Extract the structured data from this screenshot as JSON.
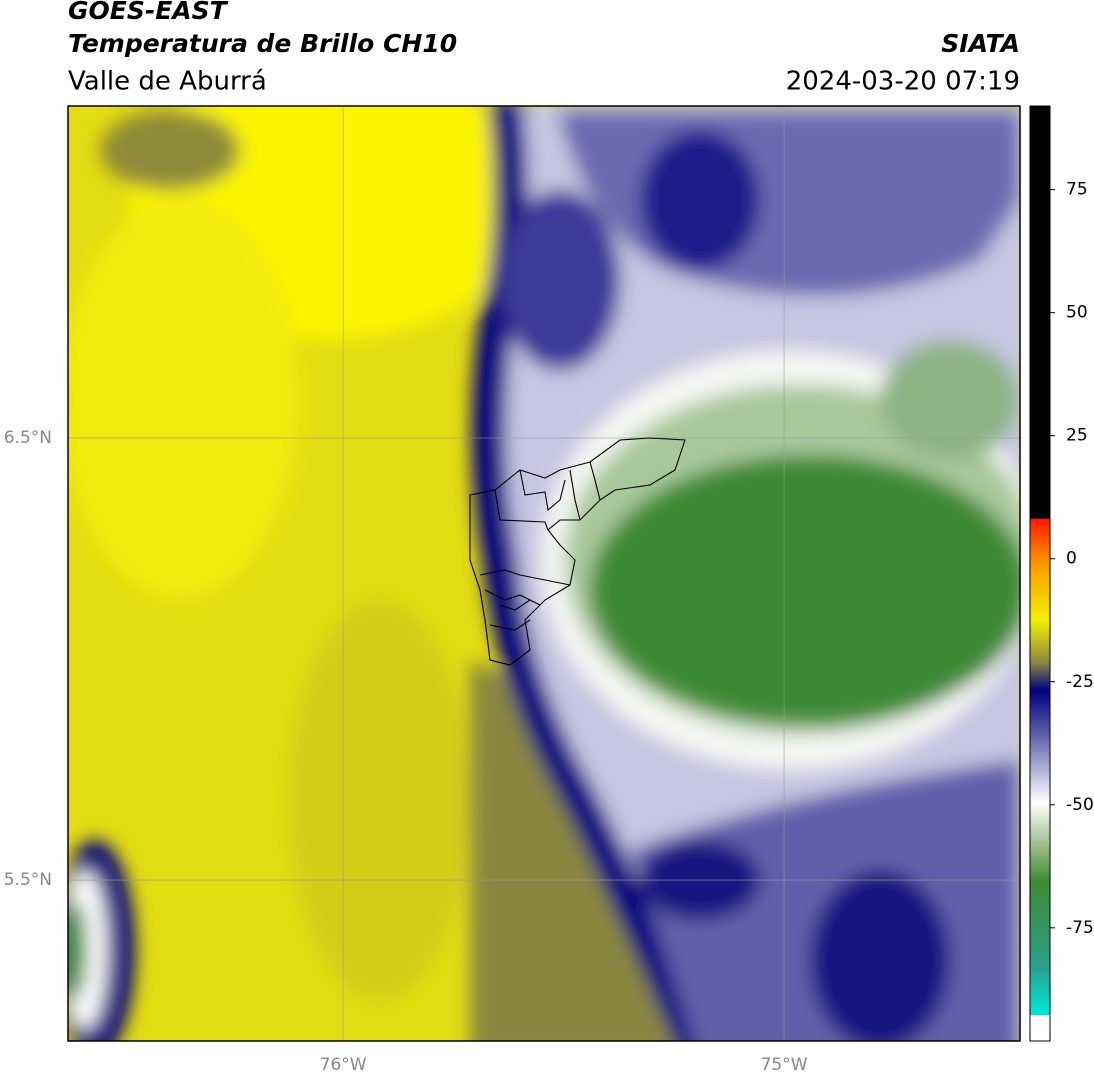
{
  "header": {
    "title": "GOES-EAST",
    "subtitle": "Temperatura de Brillo CH10",
    "region": "Valle de Aburrá",
    "source": "SIATA",
    "timestamp": "2024-03-20 07:19"
  },
  "map": {
    "latlim": [
      5.136,
      7.251
    ],
    "lonlim": [
      -76.624,
      -74.465
    ],
    "lat_ticks": [
      {
        "value": 6.5,
        "label": "6.5°N"
      },
      {
        "value": 5.5,
        "label": "5.5°N"
      }
    ],
    "lon_ticks": [
      {
        "value": -76,
        "label": "76°W"
      },
      {
        "value": -75,
        "label": "75°W"
      }
    ]
  },
  "colorbar": {
    "lim": [
      -98,
      92
    ],
    "ticks": [
      75,
      50,
      25,
      0,
      -25,
      -50,
      -75
    ]
  }
}
